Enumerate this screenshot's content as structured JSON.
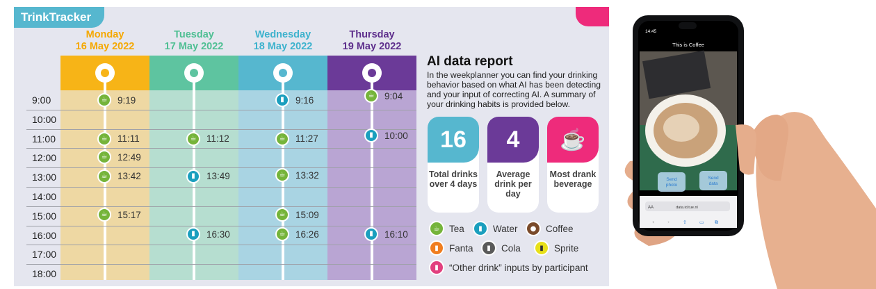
{
  "app": {
    "title": "TrinkTracker"
  },
  "days": [
    {
      "name": "Monday",
      "date": "16 May 2022",
      "head_color": "#f5a800",
      "band_color": "#f7b417",
      "col_color": "#eed8a3",
      "dot_color": "#f7b417"
    },
    {
      "name": "Tuesday",
      "date": "17 May 2022",
      "head_color": "#4fbf93",
      "band_color": "#5ec4a0",
      "col_color": "#b6ded0",
      "dot_color": "#5ec4a0"
    },
    {
      "name": "Wednesday",
      "date": "18 May 2022",
      "head_color": "#3db2cd",
      "band_color": "#56b7cf",
      "col_color": "#a9d4e3",
      "dot_color": "#56b7cf"
    },
    {
      "name": "Thursday",
      "date": "19 May 2022",
      "head_color": "#5e2f8c",
      "band_color": "#6b3a98",
      "col_color": "#b9a5d3",
      "dot_color": "#6b3a98"
    }
  ],
  "hours": [
    "9:00",
    "10:00",
    "11:00",
    "12:00",
    "13:00",
    "14:00",
    "15:00",
    "16:00",
    "17:00",
    "18:00"
  ],
  "entries": [
    {
      "day": 0,
      "time": "9:19",
      "drink": "tea",
      "hour_offset": 0.0
    },
    {
      "day": 0,
      "time": "11:11",
      "drink": "tea",
      "hour_offset": 2.0
    },
    {
      "day": 0,
      "time": "12:49",
      "drink": "tea",
      "hour_offset": 2.95
    },
    {
      "day": 0,
      "time": "13:42",
      "drink": "tea",
      "hour_offset": 3.95
    },
    {
      "day": 0,
      "time": "15:17",
      "drink": "tea",
      "hour_offset": 5.95
    },
    {
      "day": 1,
      "time": "11:12",
      "drink": "tea",
      "hour_offset": 2.0
    },
    {
      "day": 1,
      "time": "13:49",
      "drink": "water",
      "hour_offset": 3.95
    },
    {
      "day": 1,
      "time": "16:30",
      "drink": "water",
      "hour_offset": 6.95
    },
    {
      "day": 2,
      "time": "9:16",
      "drink": "water",
      "hour_offset": 0.0
    },
    {
      "day": 2,
      "time": "11:27",
      "drink": "tea",
      "hour_offset": 2.0
    },
    {
      "day": 2,
      "time": "13:32",
      "drink": "tea",
      "hour_offset": 3.9
    },
    {
      "day": 2,
      "time": "15:09",
      "drink": "tea",
      "hour_offset": 5.95
    },
    {
      "day": 2,
      "time": "16:26",
      "drink": "tea",
      "hour_offset": 6.95
    },
    {
      "day": 3,
      "time": "9:04",
      "drink": "tea",
      "hour_offset": -0.2
    },
    {
      "day": 3,
      "time": "10:00",
      "drink": "water",
      "hour_offset": 1.85
    },
    {
      "day": 3,
      "time": "16:10",
      "drink": "water",
      "hour_offset": 6.95
    }
  ],
  "report": {
    "title": "AI data report",
    "text": "In the weekplanner you can find your drinking behavior based on what AI has been detecting and your input of correcting AI. A summary of your drinking habits is provided below."
  },
  "stats": [
    {
      "value": "16",
      "label": "Total drinks over 4 days",
      "color": "#56b7cf"
    },
    {
      "value": "4",
      "label": "Average drink per day",
      "color": "#6b3a98"
    },
    {
      "value": "",
      "label": "Most drank beverage",
      "color": "#ee2b7b",
      "icon": "tea-cup-icon"
    }
  ],
  "legend": [
    {
      "label": "Tea",
      "color": "#75b43a",
      "icon": "tea-icon"
    },
    {
      "label": "Water",
      "color": "#1b9fbe",
      "icon": "water-icon"
    },
    {
      "label": "Coffee",
      "color": "#7a4a2a",
      "icon": "coffee-icon"
    },
    {
      "label": "Fanta",
      "color": "#f07d1f",
      "icon": "fanta-icon"
    },
    {
      "label": "Cola",
      "color": "#5a5a5a",
      "icon": "cola-icon"
    },
    {
      "label": "Sprite",
      "color": "#e8e01a",
      "icon": "sprite-icon"
    },
    {
      "label": "“Other drink” inputs by participant",
      "color": "#e2407f",
      "icon": "other-drink-icon"
    }
  ],
  "phone": {
    "status_time": "14:45",
    "header": "This is Coffee",
    "send_photo": "Send photo",
    "send_data": "Send data",
    "url_aa": "AA",
    "url": "data.id.tue.nl"
  }
}
